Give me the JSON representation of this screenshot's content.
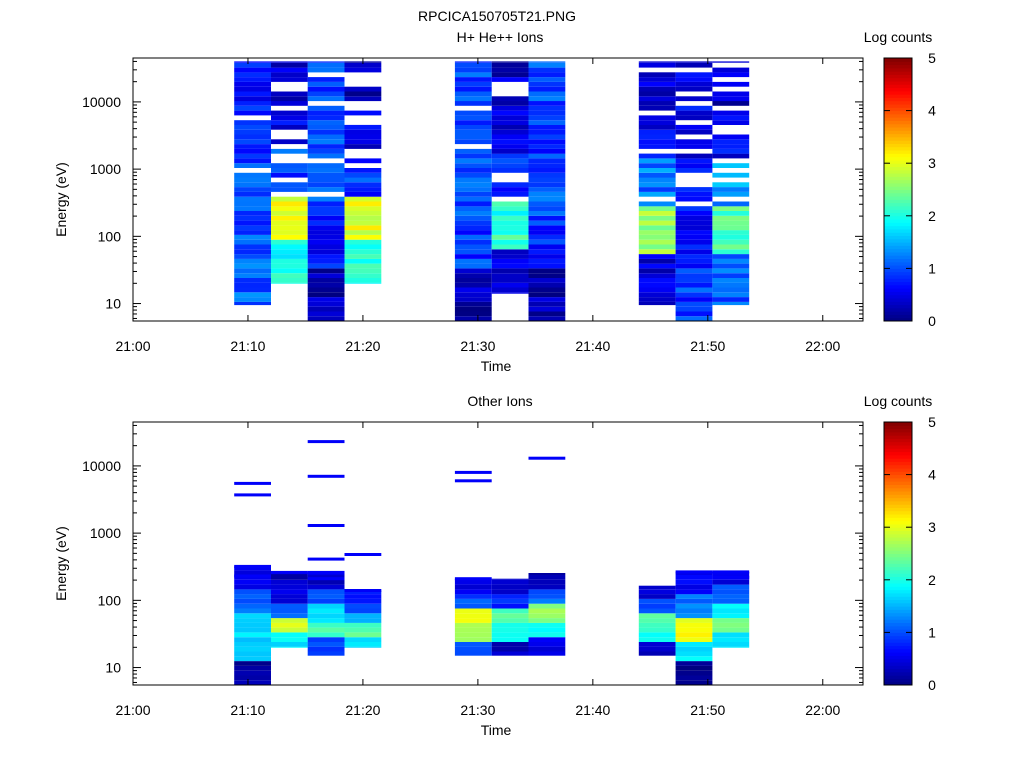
{
  "figure_title": "RPCICA150705T21.PNG",
  "chart_data": [
    {
      "type": "heatmap",
      "title": "H+ He++ Ions",
      "xlabel": "Time",
      "ylabel": "Energy (eV)",
      "x_ticks": [
        "21:00",
        "21:10",
        "21:20",
        "21:30",
        "21:40",
        "21:50",
        "22:00"
      ],
      "x_tick_minutes": [
        0,
        10,
        20,
        30,
        40,
        50,
        60
      ],
      "xlim_minutes": [
        0,
        63.5
      ],
      "y_scale": "log",
      "ylim": [
        5.5,
        45000
      ],
      "y_ticks": [
        10,
        100,
        1000,
        10000
      ],
      "y_tick_labels": [
        "10",
        "100",
        "1000",
        "10000"
      ],
      "colorbar": {
        "label": "Log counts",
        "min": 0,
        "max": 5,
        "ticks": [
          "0",
          "1",
          "2",
          "3",
          "4",
          "5"
        ],
        "colormap": "jet"
      },
      "columns": [
        {
          "t0": 8.8,
          "t1": 12.0,
          "emin": 9.5,
          "emax": 40000,
          "gaps": 2,
          "base": [
            1.1,
            1.0,
            0.95,
            0.85,
            0.7
          ]
        },
        {
          "t0": 12.0,
          "t1": 15.2,
          "emin": 20,
          "emax": 40000,
          "gaps": 11,
          "base": [
            1.9,
            3.1,
            0.95,
            0.6,
            0.35
          ]
        },
        {
          "t0": 15.2,
          "t1": 18.4,
          "emin": 5.5,
          "emax": 40000,
          "gaps": 4,
          "base": [
            0.3,
            0.7,
            1.0,
            1.0,
            0.95
          ]
        },
        {
          "t0": 18.4,
          "t1": 21.6,
          "emin": 20,
          "emax": 40000,
          "gaps": 11,
          "base": [
            2.1,
            3.0,
            0.9,
            0.55,
            0.3
          ]
        },
        {
          "t0": 28.0,
          "t1": 31.2,
          "emin": 5.5,
          "emax": 40000,
          "gaps": 2,
          "base": [
            0.25,
            0.9,
            1.0,
            1.0,
            0.95
          ]
        },
        {
          "t0": 31.2,
          "t1": 34.4,
          "emin": 14,
          "emax": 40000,
          "gaps": 9,
          "base": [
            0.5,
            2.1,
            0.9,
            0.5,
            0.35
          ]
        },
        {
          "t0": 34.4,
          "t1": 37.6,
          "emin": 5.5,
          "emax": 40000,
          "gaps": 4,
          "base": [
            0.3,
            0.8,
            1.0,
            0.85,
            1.0
          ]
        },
        {
          "t0": 44.0,
          "t1": 47.2,
          "emin": 9.5,
          "emax": 40000,
          "gaps": 6,
          "base": [
            0.4,
            2.6,
            1.2,
            0.55,
            0.35
          ]
        },
        {
          "t0": 47.2,
          "t1": 50.4,
          "emin": 5.5,
          "emax": 40000,
          "gaps": 7,
          "base": [
            0.9,
            0.6,
            0.85,
            0.55,
            0.55
          ]
        },
        {
          "t0": 50.4,
          "t1": 53.6,
          "emin": 9.5,
          "emax": 40000,
          "gaps": 8,
          "base": [
            1.1,
            2.3,
            1.4,
            0.6,
            0.35
          ]
        }
      ]
    },
    {
      "type": "heatmap",
      "title": "Other Ions",
      "xlabel": "Time",
      "ylabel": "Energy (eV)",
      "x_ticks": [
        "21:00",
        "21:10",
        "21:20",
        "21:30",
        "21:40",
        "21:50",
        "22:00"
      ],
      "x_tick_minutes": [
        0,
        10,
        20,
        30,
        40,
        50,
        60
      ],
      "xlim_minutes": [
        0,
        63.5
      ],
      "y_scale": "log",
      "ylim": [
        5.5,
        45000
      ],
      "y_ticks": [
        10,
        100,
        1000,
        10000
      ],
      "y_tick_labels": [
        "10",
        "100",
        "1000",
        "10000"
      ],
      "colorbar": {
        "label": "Log counts",
        "min": 0,
        "max": 5,
        "ticks": [
          "0",
          "1",
          "2",
          "3",
          "4",
          "5"
        ],
        "colormap": "jet"
      },
      "columns": [
        {
          "t0": 8.8,
          "t1": 12.0,
          "emin": 5.5,
          "emax": 320,
          "lines": [
            5500,
            3700,
            320,
            230
          ],
          "base": [
            0.2,
            1.6,
            1.7,
            1.1,
            0.5
          ]
        },
        {
          "t0": 12.0,
          "t1": 15.2,
          "emin": 20,
          "emax": 260,
          "lines": [
            260
          ],
          "base": [
            1.8,
            2.9,
            1.1,
            0.5,
            0.3
          ]
        },
        {
          "t0": 15.2,
          "t1": 18.4,
          "emin": 15,
          "emax": 260,
          "lines": [
            23000,
            7000,
            1300,
            410,
            260,
            210
          ],
          "base": [
            0.9,
            2.2,
            1.8,
            1.0,
            0.4
          ]
        },
        {
          "t0": 18.4,
          "t1": 21.6,
          "emin": 20,
          "emax": 140,
          "lines": [
            480,
            140
          ],
          "base": [
            1.8,
            2.3,
            1.5,
            1.0,
            0.8
          ]
        },
        {
          "t0": 28.0,
          "t1": 31.2,
          "emin": 15,
          "emax": 210,
          "lines": [
            8000,
            6000,
            210
          ],
          "base": [
            0.9,
            2.7,
            3.1,
            1.0,
            0.5
          ]
        },
        {
          "t0": 31.2,
          "t1": 34.4,
          "emin": 15,
          "emax": 210,
          "lines": [],
          "base": [
            0.3,
            2.0,
            2.3,
            0.8,
            0.3
          ]
        },
        {
          "t0": 34.4,
          "t1": 37.6,
          "emin": 15,
          "emax": 255,
          "lines": [
            13000
          ],
          "base": [
            0.5,
            2.0,
            2.6,
            1.1,
            0.3
          ]
        },
        {
          "t0": 44.0,
          "t1": 47.2,
          "emin": 15,
          "emax": 165,
          "lines": [],
          "base": [
            0.3,
            2.0,
            2.2,
            1.0,
            0.4
          ]
        },
        {
          "t0": 47.2,
          "t1": 50.4,
          "emin": 5.5,
          "emax": 265,
          "lines": [
            265
          ],
          "base": [
            0.1,
            1.8,
            3.1,
            1.2,
            0.6
          ]
        },
        {
          "t0": 50.4,
          "t1": 53.6,
          "emin": 20,
          "emax": 265,
          "lines": [
            265,
            220
          ],
          "base": [
            1.8,
            2.4,
            1.8,
            1.1,
            0.5
          ]
        }
      ]
    }
  ]
}
